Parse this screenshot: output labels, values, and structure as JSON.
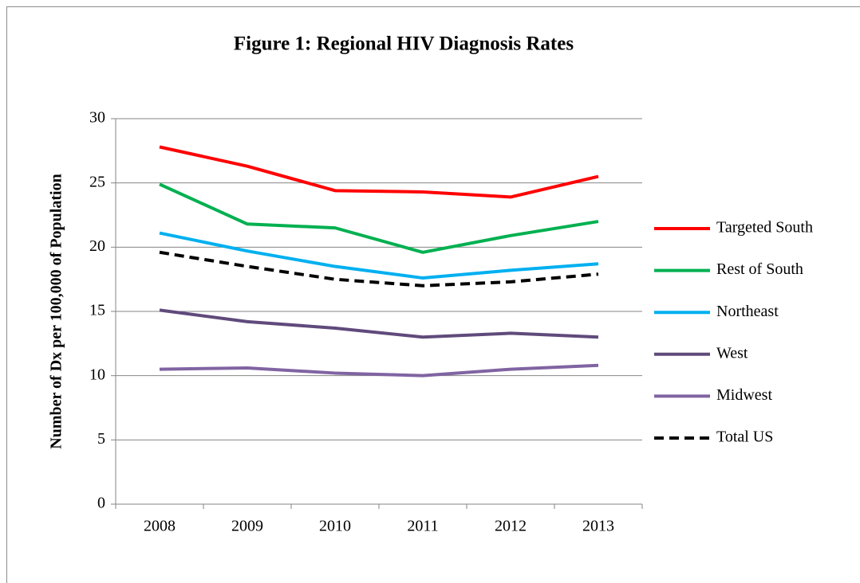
{
  "chart_data": {
    "type": "line",
    "title": "Figure 1: Regional HIV Diagnosis Rates",
    "y_label": "Number of Dx per 100,000 of Population",
    "categories": [
      "2008",
      "2009",
      "2010",
      "2011",
      "2012",
      "2013"
    ],
    "series": [
      {
        "name": "Targeted South",
        "color": "#ff0000",
        "values": [
          27.8,
          26.3,
          24.4,
          24.3,
          23.9,
          25.5
        ]
      },
      {
        "name": "Rest of South",
        "color": "#00b050",
        "values": [
          24.9,
          21.8,
          21.5,
          19.6,
          20.9,
          22.0
        ]
      },
      {
        "name": "Northeast",
        "color": "#00b0f0",
        "values": [
          21.1,
          19.7,
          18.5,
          17.6,
          18.2,
          18.7
        ]
      },
      {
        "name": "West",
        "color": "#604a7b",
        "values": [
          15.1,
          14.2,
          13.7,
          13.0,
          13.3,
          13.0
        ]
      },
      {
        "name": "Midwest",
        "color": "#8064a2",
        "values": [
          10.5,
          10.6,
          10.2,
          10.0,
          10.5,
          10.8
        ]
      },
      {
        "name": "Total US",
        "color": "#000000",
        "dashed": true,
        "values": [
          19.6,
          18.5,
          17.5,
          17.0,
          17.3,
          17.9
        ]
      }
    ],
    "ylim": [
      0,
      30
    ],
    "yticks": [
      0,
      5,
      10,
      15,
      20,
      25,
      30
    ],
    "grid": true,
    "legend": "right"
  }
}
